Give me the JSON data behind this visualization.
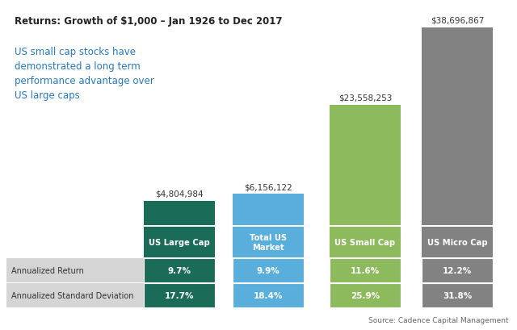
{
  "title": "Returns: Growth of $1,000 – Jan 1926 to Dec 2017",
  "subtitle": "US small cap stocks have\ndemonstrated a long term\nperformance advantage over\nUS large caps",
  "categories": [
    "US Large Cap",
    "Total US\nMarket",
    "US Small Cap",
    "US Micro Cap"
  ],
  "values": [
    4804984,
    6156122,
    23558253,
    38696867
  ],
  "value_labels": [
    "$4,804,984",
    "$6,156,122",
    "$23,558,253",
    "$38,696,867"
  ],
  "bar_colors": [
    "#1b6b59",
    "#5aaedb",
    "#8dba5c",
    "#828282"
  ],
  "annualized_return": [
    "9.7%",
    "9.9%",
    "11.6%",
    "12.2%"
  ],
  "annualized_std": [
    "17.7%",
    "18.4%",
    "25.9%",
    "31.8%"
  ],
  "source": "Source: Cadence Capital Management",
  "row_labels": [
    "Annualized Return",
    "Annualized Standard Deviation"
  ],
  "row_bg": "#d5d5d5",
  "background_color": "#ffffff",
  "subtitle_color": "#2878b8",
  "title_color": "#222222"
}
